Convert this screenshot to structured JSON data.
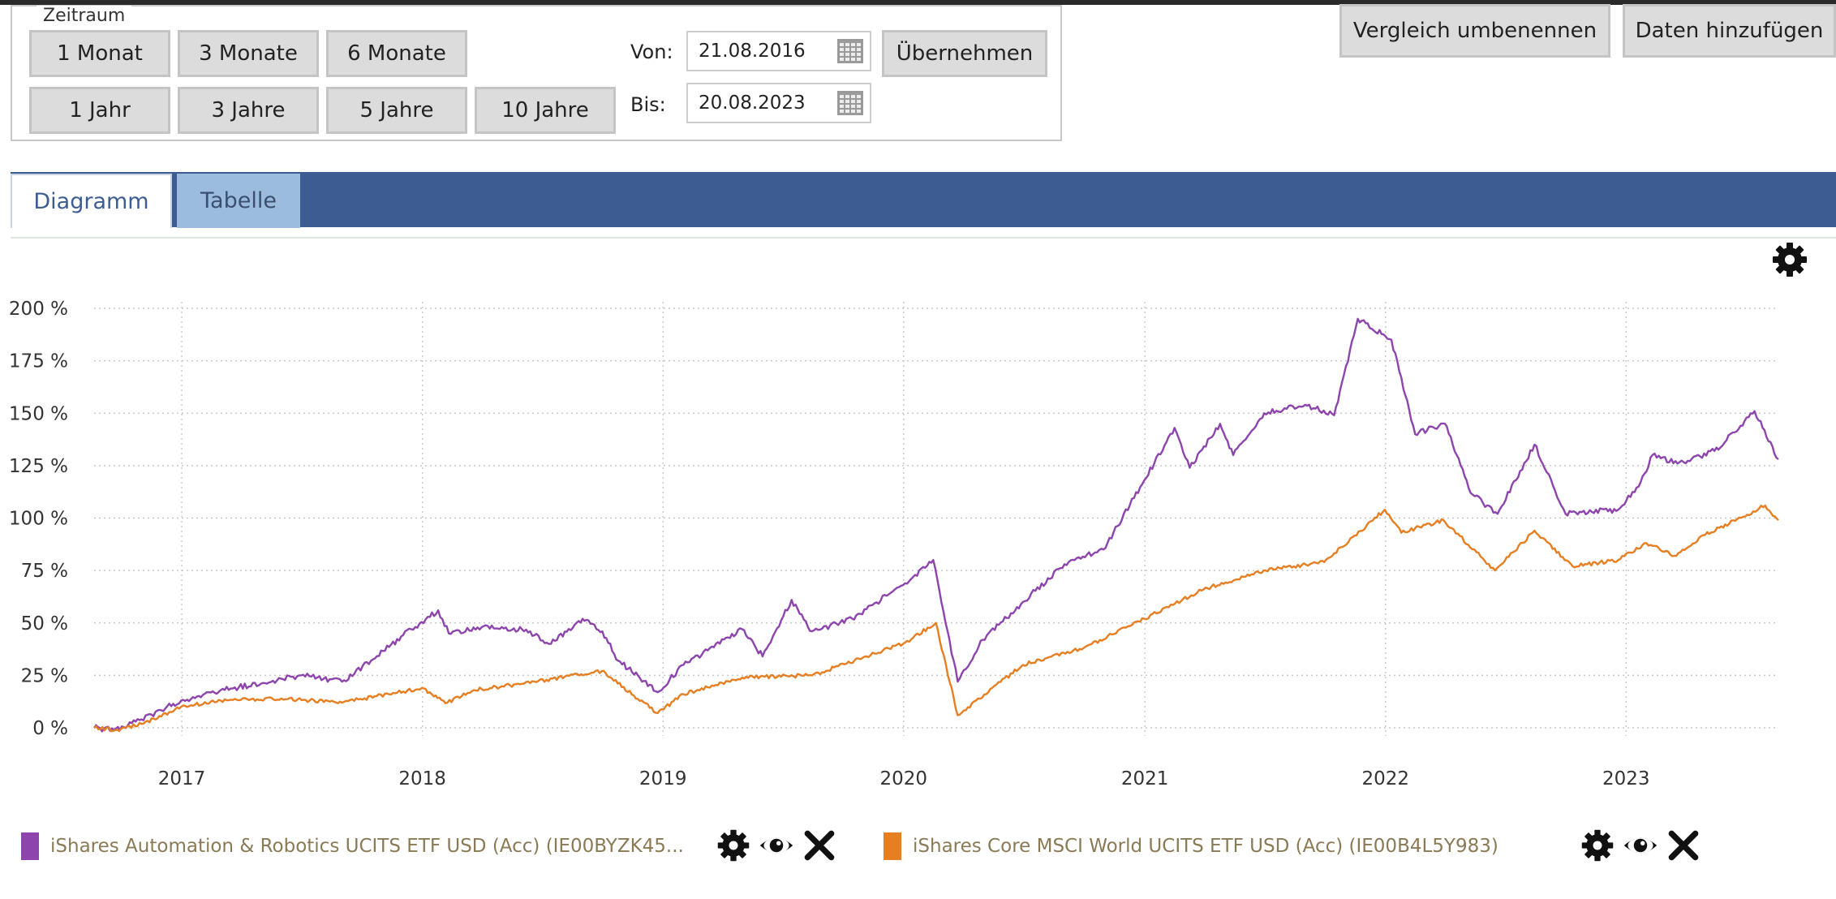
{
  "zeitraum": {
    "legend": "Zeitraum",
    "buttons": [
      "1 Monat",
      "3 Monate",
      "6 Monate",
      "1 Jahr",
      "3 Jahre",
      "5 Jahre",
      "10 Jahre"
    ],
    "von_label": "Von:",
    "von_value": "21.08.2016",
    "bis_label": "Bis:",
    "bis_value": "20.08.2023",
    "apply_label": "Übernehmen"
  },
  "header_buttons": {
    "rename": "Vergleich umbenennen",
    "add": "Daten hinzufügen"
  },
  "tabs": {
    "diagramm": "Diagramm",
    "tabelle": "Tabelle",
    "active": "Diagramm"
  },
  "icons": {
    "settings": "gear-icon",
    "visibility": "eye-icon",
    "remove": "close-icon",
    "calendar": "calendar-icon"
  },
  "chart_data": {
    "type": "line",
    "x_start": "2016-08-21",
    "x_end": "2023-08-20",
    "year_ticks": [
      "2017",
      "2018",
      "2019",
      "2020",
      "2021",
      "2022",
      "2023"
    ],
    "y_ticks": [
      "0 %",
      "25 %",
      "50 %",
      "75 %",
      "100 %",
      "125 %",
      "150 %",
      "175 %",
      "200 %"
    ],
    "ylim": [
      0,
      200
    ],
    "grid": true,
    "series": [
      {
        "name": "iShares Automation & Robotics UCITS ETF USD (Acc) (IE00BYZK45...",
        "color": "#8e44ad",
        "points": [
          [
            "2016-08-21",
            0
          ],
          [
            "2016-09-20",
            -1
          ],
          [
            "2016-11-01",
            4
          ],
          [
            "2016-12-31",
            13
          ],
          [
            "2017-03-01",
            18
          ],
          [
            "2017-05-01",
            21
          ],
          [
            "2017-07-01",
            25
          ],
          [
            "2017-09-01",
            22
          ],
          [
            "2017-10-15",
            32
          ],
          [
            "2017-12-15",
            47
          ],
          [
            "2018-01-25",
            56
          ],
          [
            "2018-02-10",
            45
          ],
          [
            "2018-04-01",
            48
          ],
          [
            "2018-06-01",
            47
          ],
          [
            "2018-07-15",
            40
          ],
          [
            "2018-09-01",
            52
          ],
          [
            "2018-10-01",
            46
          ],
          [
            "2018-10-25",
            32
          ],
          [
            "2018-12-24",
            17
          ],
          [
            "2019-02-01",
            30
          ],
          [
            "2019-05-01",
            47
          ],
          [
            "2019-06-01",
            34
          ],
          [
            "2019-07-15",
            61
          ],
          [
            "2019-08-15",
            46
          ],
          [
            "2019-10-15",
            52
          ],
          [
            "2019-12-31",
            68
          ],
          [
            "2020-02-15",
            80
          ],
          [
            "2020-03-23",
            22
          ],
          [
            "2020-04-30",
            42
          ],
          [
            "2020-06-30",
            60
          ],
          [
            "2020-09-01",
            78
          ],
          [
            "2020-10-30",
            85
          ],
          [
            "2020-12-31",
            118
          ],
          [
            "2021-02-15",
            143
          ],
          [
            "2021-03-10",
            124
          ],
          [
            "2021-04-25",
            145
          ],
          [
            "2021-05-15",
            130
          ],
          [
            "2021-07-01",
            150
          ],
          [
            "2021-09-01",
            154
          ],
          [
            "2021-10-15",
            149
          ],
          [
            "2021-11-20",
            195
          ],
          [
            "2022-01-10",
            185
          ],
          [
            "2022-02-15",
            140
          ],
          [
            "2022-04-01",
            145
          ],
          [
            "2022-05-10",
            112
          ],
          [
            "2022-06-20",
            102
          ],
          [
            "2022-08-15",
            135
          ],
          [
            "2022-10-01",
            102
          ],
          [
            "2022-12-20",
            104
          ],
          [
            "2023-01-20",
            115
          ],
          [
            "2023-02-10",
            130
          ],
          [
            "2023-03-20",
            126
          ],
          [
            "2023-05-15",
            132
          ],
          [
            "2023-07-15",
            151
          ],
          [
            "2023-08-20",
            128
          ]
        ]
      },
      {
        "name": "iShares Core MSCI World UCITS ETF USD (Acc) (IE00B4L5Y983)",
        "color": "#e67e22",
        "points": [
          [
            "2016-08-21",
            0
          ],
          [
            "2016-09-25",
            -1
          ],
          [
            "2016-11-04",
            2
          ],
          [
            "2016-12-31",
            10
          ],
          [
            "2017-03-01",
            13
          ],
          [
            "2017-06-01",
            14
          ],
          [
            "2017-09-01",
            12
          ],
          [
            "2017-12-31",
            19
          ],
          [
            "2018-02-08",
            12
          ],
          [
            "2018-03-20",
            18
          ],
          [
            "2018-06-01",
            21
          ],
          [
            "2018-09-30",
            27
          ],
          [
            "2018-12-24",
            7
          ],
          [
            "2019-02-01",
            16
          ],
          [
            "2019-05-01",
            24
          ],
          [
            "2019-08-15",
            25
          ],
          [
            "2019-12-31",
            40
          ],
          [
            "2020-02-19",
            50
          ],
          [
            "2020-03-23",
            6
          ],
          [
            "2020-06-30",
            30
          ],
          [
            "2020-09-30",
            38
          ],
          [
            "2020-12-31",
            52
          ],
          [
            "2021-03-31",
            66
          ],
          [
            "2021-06-30",
            75
          ],
          [
            "2021-09-30",
            79
          ],
          [
            "2021-12-31",
            104
          ],
          [
            "2022-01-25",
            93
          ],
          [
            "2022-03-30",
            99
          ],
          [
            "2022-06-16",
            75
          ],
          [
            "2022-08-15",
            94
          ],
          [
            "2022-10-12",
            77
          ],
          [
            "2022-12-20",
            80
          ],
          [
            "2023-02-01",
            88
          ],
          [
            "2023-03-15",
            82
          ],
          [
            "2023-05-01",
            92
          ],
          [
            "2023-07-31",
            106
          ],
          [
            "2023-08-20",
            99
          ]
        ]
      }
    ]
  }
}
